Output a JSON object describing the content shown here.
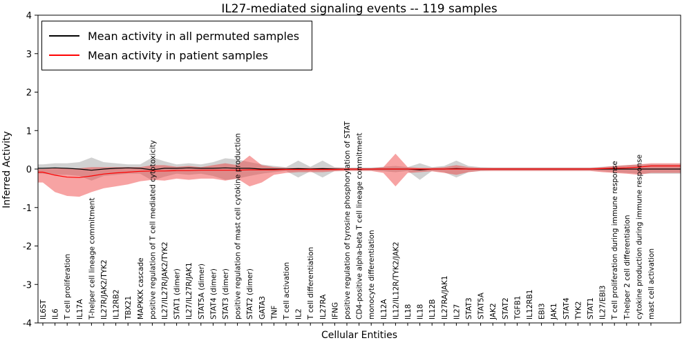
{
  "chart_data": {
    "type": "line",
    "title": "IL27-mediated signaling events -- 119 samples",
    "xlabel": "Cellular Entities",
    "ylabel": "Inferred Activity",
    "ylim": [
      -4,
      4
    ],
    "yticks": [
      -4,
      -3,
      -2,
      -1,
      0,
      1,
      2,
      3,
      4
    ],
    "grid": false,
    "legend_position": "upper left",
    "categories": [
      "IL6ST",
      "IL6",
      "T cell proliferation",
      "IL17A",
      "T-helper cell lineage commitment",
      "IL27R/JAK2/TYK2",
      "IL12RB2",
      "TBX21",
      "MAPKKK cascade",
      "positive regulation of T cell mediated cytotoxicity",
      "IL27/IL27R/JAK2/TYK2",
      "STAT1 (dimer)",
      "IL27/IL27R/JAK1",
      "STAT5A (dimer)",
      "STAT4 (dimer)",
      "STAT3 (dimer)",
      "positive regulation of mast cell cytokine production",
      "STAT2 (dimer)",
      "GATA3",
      "TNF",
      "T cell activation",
      "IL2",
      "T cell differentiation",
      "IL27RA",
      "IFNG",
      "positive regulation of tyrosine phosphorylation of STAT",
      "CD4-positive alpha-beta T cell lineage commitment",
      "monocyte differentiation",
      "IL12A",
      "IL12/IL12R/TYK2/JAK2",
      "IL18",
      "IL18",
      "IL12B",
      "IL27RA/JAK1",
      "IL27",
      "STAT3",
      "STAT5A",
      "JAK2",
      "STAT2",
      "TGFB1",
      "IL12RB1",
      "EBI3",
      "JAK1",
      "STAT4",
      "TYK2",
      "STAT1",
      "IL27/EBI3",
      "T cell proliferation during immune response",
      "T-helper 2 cell differentiation",
      "cytokine production during immune response",
      "mast cell activation"
    ],
    "series": [
      {
        "name": "Mean activity in all permuted samples",
        "color": "#000000",
        "band_color": "#999999",
        "band_opacity": 0.45,
        "values": [
          0.02,
          0.03,
          0.02,
          0.0,
          -0.03,
          0.0,
          0.02,
          0.03,
          0.02,
          -0.02,
          0.02,
          0.02,
          0.03,
          0.02,
          0.02,
          0.03,
          0.02,
          0.02,
          0.0,
          0.0,
          0.0,
          0.01,
          0.0,
          0.01,
          0.0,
          0.0,
          0.0,
          0.0,
          0.0,
          0.0,
          0.0,
          -0.02,
          0.0,
          0.0,
          0.01,
          0.0,
          0.0,
          0.0,
          0.0,
          0.0,
          0.0,
          0.0,
          0.0,
          0.0,
          0.0,
          0.0,
          0.0,
          0.0,
          0.0,
          0.0,
          0.0
        ],
        "band_upper": [
          0.12,
          0.15,
          0.15,
          0.18,
          0.3,
          0.18,
          0.15,
          0.12,
          0.12,
          0.3,
          0.2,
          0.12,
          0.15,
          0.12,
          0.18,
          0.28,
          0.25,
          0.18,
          0.12,
          0.08,
          0.05,
          0.22,
          0.06,
          0.22,
          0.05,
          0.04,
          0.04,
          0.04,
          0.06,
          0.08,
          0.05,
          0.15,
          0.05,
          0.08,
          0.22,
          0.08,
          0.05,
          0.04,
          0.04,
          0.04,
          0.04,
          0.04,
          0.04,
          0.04,
          0.04,
          0.04,
          0.06,
          0.08,
          0.1,
          0.12,
          0.12
        ],
        "band_lower": [
          -0.12,
          -0.15,
          -0.15,
          -0.18,
          -0.3,
          -0.18,
          -0.15,
          -0.12,
          -0.12,
          -0.3,
          -0.2,
          -0.12,
          -0.15,
          -0.12,
          -0.18,
          -0.28,
          -0.25,
          -0.18,
          -0.12,
          -0.08,
          -0.05,
          -0.22,
          -0.06,
          -0.22,
          -0.05,
          -0.04,
          -0.04,
          -0.04,
          -0.06,
          -0.08,
          -0.05,
          -0.28,
          -0.05,
          -0.08,
          -0.22,
          -0.08,
          -0.05,
          -0.04,
          -0.04,
          -0.04,
          -0.04,
          -0.04,
          -0.04,
          -0.04,
          -0.04,
          -0.04,
          -0.06,
          -0.08,
          -0.1,
          -0.12,
          -0.12
        ]
      },
      {
        "name": "Mean activity in patient samples",
        "color": "#ff0000",
        "band_color": "#ee3333",
        "band_opacity": 0.45,
        "values": [
          -0.08,
          -0.16,
          -0.21,
          -0.22,
          -0.18,
          -0.13,
          -0.1,
          -0.08,
          -0.06,
          -0.05,
          -0.05,
          -0.04,
          -0.04,
          -0.03,
          -0.03,
          -0.03,
          -0.03,
          -0.02,
          -0.02,
          -0.02,
          -0.01,
          -0.01,
          -0.01,
          -0.01,
          -0.01,
          0.0,
          0.0,
          0.0,
          0.0,
          0.0,
          0.0,
          0.0,
          0.0,
          0.0,
          0.0,
          0.0,
          0.0,
          0.0,
          0.0,
          0.0,
          0.0,
          0.0,
          0.0,
          0.0,
          0.0,
          0.0,
          0.01,
          0.02,
          0.03,
          0.05,
          0.08
        ],
        "band_upper": [
          0.0,
          0.02,
          0.02,
          0.02,
          0.05,
          0.05,
          0.05,
          0.05,
          0.05,
          0.1,
          0.1,
          0.06,
          0.08,
          0.05,
          0.1,
          0.15,
          0.1,
          0.35,
          0.1,
          0.05,
          0.03,
          0.03,
          0.03,
          0.03,
          0.03,
          0.02,
          0.02,
          0.02,
          0.05,
          0.4,
          0.05,
          0.03,
          0.03,
          0.05,
          0.1,
          0.05,
          0.03,
          0.03,
          0.03,
          0.03,
          0.03,
          0.03,
          0.03,
          0.03,
          0.03,
          0.03,
          0.05,
          0.08,
          0.1,
          0.12,
          0.15
        ],
        "band_lower": [
          -0.35,
          -0.6,
          -0.7,
          -0.72,
          -0.6,
          -0.5,
          -0.45,
          -0.4,
          -0.32,
          -0.28,
          -0.3,
          -0.25,
          -0.28,
          -0.25,
          -0.25,
          -0.3,
          -0.25,
          -0.45,
          -0.35,
          -0.15,
          -0.1,
          -0.08,
          -0.08,
          -0.08,
          -0.06,
          -0.05,
          -0.05,
          -0.05,
          -0.1,
          -0.45,
          -0.1,
          -0.08,
          -0.06,
          -0.1,
          -0.15,
          -0.08,
          -0.05,
          -0.05,
          -0.05,
          -0.05,
          -0.05,
          -0.05,
          -0.05,
          -0.05,
          -0.05,
          -0.05,
          -0.08,
          -0.1,
          -0.12,
          -0.15,
          -0.1
        ]
      }
    ]
  }
}
